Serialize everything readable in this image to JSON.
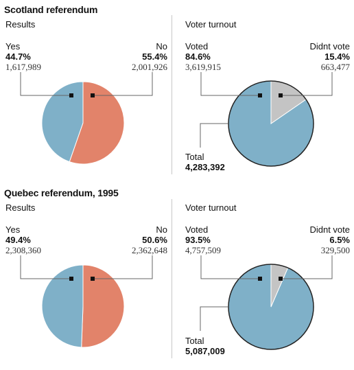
{
  "colors": {
    "yes": "#7fb0c8",
    "no": "#e2836a",
    "voted": "#7fb0c8",
    "didnt_vote": "#c4c4c4",
    "lines": "#666666",
    "divider": "#c8c8c8"
  },
  "sections": [
    {
      "title": "Scotland referendum",
      "results": {
        "subtitle": "Results",
        "yes": {
          "name": "Yes",
          "pct": "44.7%",
          "count": "1,617,989"
        },
        "no": {
          "name": "No",
          "pct": "55.4%",
          "count": "2,001,926"
        }
      },
      "turnout": {
        "subtitle": "Voter turnout",
        "voted": {
          "name": "Voted",
          "pct": "84.6%",
          "count": "3,619,915"
        },
        "didnt": {
          "name": "Didnt vote",
          "pct": "15.4%",
          "count": "663,477"
        },
        "total": {
          "name": "Total",
          "count": "4,283,392"
        }
      }
    },
    {
      "title": "Quebec referendum, 1995",
      "results": {
        "subtitle": "Results",
        "yes": {
          "name": "Yes",
          "pct": "49.4%",
          "count": "2,308,360"
        },
        "no": {
          "name": "No",
          "pct": "50.6%",
          "count": "2,362,648"
        }
      },
      "turnout": {
        "subtitle": "Voter turnout",
        "voted": {
          "name": "Voted",
          "pct": "93.5%",
          "count": "4,757,509"
        },
        "didnt": {
          "name": "Didnt vote",
          "pct": "6.5%",
          "count": "329,500"
        },
        "total": {
          "name": "Total",
          "count": "5,087,009"
        }
      }
    }
  ],
  "chart_data": [
    {
      "type": "pie",
      "title": "Scotland referendum",
      "subtitle": "Results",
      "categories": [
        "Yes",
        "No"
      ],
      "values": [
        44.7,
        55.4
      ],
      "counts": [
        1617989,
        2001926
      ]
    },
    {
      "type": "pie",
      "title": "Scotland referendum",
      "subtitle": "Voter turnout",
      "categories": [
        "Voted",
        "Didnt vote"
      ],
      "values": [
        84.6,
        15.4
      ],
      "counts": [
        3619915,
        663477
      ],
      "total": 4283392
    },
    {
      "type": "pie",
      "title": "Quebec referendum, 1995",
      "subtitle": "Results",
      "categories": [
        "Yes",
        "No"
      ],
      "values": [
        49.4,
        50.6
      ],
      "counts": [
        2308360,
        2362648
      ]
    },
    {
      "type": "pie",
      "title": "Quebec referendum, 1995",
      "subtitle": "Voter turnout",
      "categories": [
        "Voted",
        "Didnt vote"
      ],
      "values": [
        93.5,
        6.5
      ],
      "counts": [
        4757509,
        329500
      ],
      "total": 5087009
    }
  ]
}
